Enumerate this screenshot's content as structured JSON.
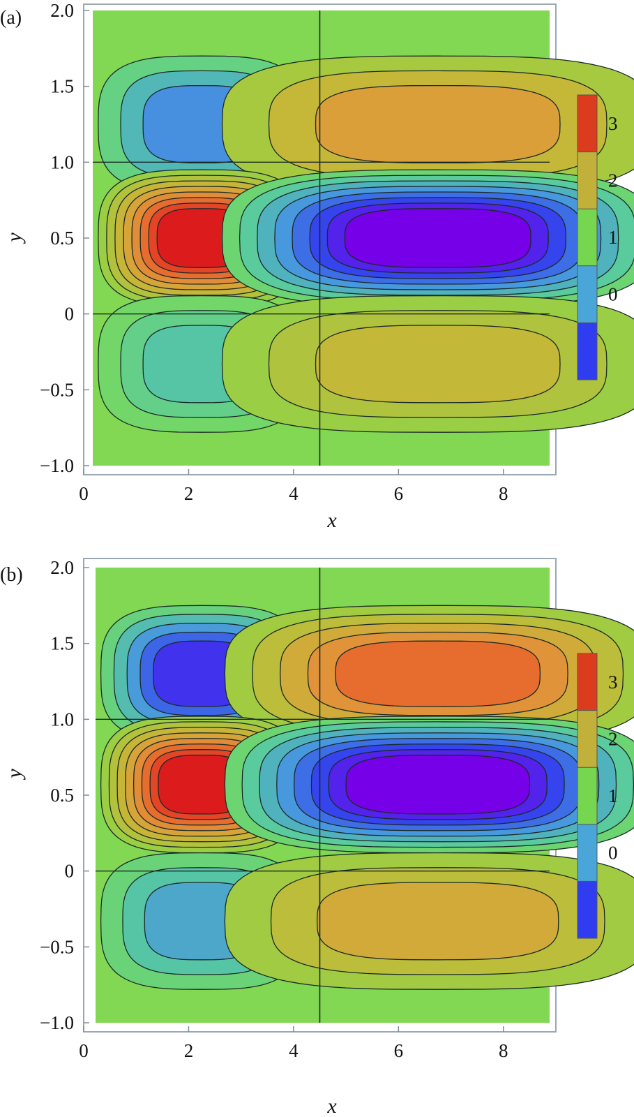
{
  "chart_data": [
    {
      "type": "contour",
      "panel_label": "(a)",
      "xlabel": "x",
      "ylabel": "y",
      "xlim": [
        0,
        9
      ],
      "ylim": [
        -1.0,
        2.0
      ],
      "x_ticks": [
        "0",
        "2",
        "4",
        "6",
        "8"
      ],
      "y_ticks": [
        "−1.0",
        "−0.5",
        "0",
        "0.5",
        "1.0",
        "1.5",
        "2.0"
      ],
      "x_tick_values": [
        0,
        2,
        4,
        6,
        8
      ],
      "y_tick_values": [
        -1.0,
        -0.5,
        0,
        0.5,
        1.0,
        1.5,
        2.0
      ],
      "streamlines": true,
      "cells": [
        {
          "row": "upper",
          "x_center": 2.25,
          "y_center": 1.25,
          "peak_value": 0.4
        },
        {
          "row": "upper",
          "x_center": 6.75,
          "y_center": 1.25,
          "peak_value": 2.8
        },
        {
          "row": "middle",
          "x_center": 2.25,
          "y_center": 0.5,
          "peak_value": 3.9
        },
        {
          "row": "middle",
          "x_center": 6.75,
          "y_center": 0.5,
          "peak_value": -0.6
        },
        {
          "row": "lower",
          "x_center": 2.25,
          "y_center": -0.33,
          "peak_value": 0.9
        },
        {
          "row": "lower",
          "x_center": 6.75,
          "y_center": -0.33,
          "peak_value": 2.35
        }
      ],
      "colorbar": {
        "ticks": [
          "3",
          "2",
          "1",
          "0"
        ],
        "colors": [
          "#dc3c1e",
          "#c1b03a",
          "#77d64f",
          "#4aa6d8",
          "#2f3cf0"
        ]
      }
    },
    {
      "type": "contour",
      "panel_label": "(b)",
      "xlabel": "x",
      "ylabel": "y",
      "xlim": [
        0,
        9
      ],
      "ylim": [
        -1.0,
        2.0
      ],
      "x_ticks": [
        "0",
        "2",
        "4",
        "6",
        "8"
      ],
      "y_ticks": [
        "−1.0",
        "−0.5",
        "0",
        "0.5",
        "1.0",
        "1.5",
        "2.0"
      ],
      "x_tick_values": [
        0,
        2,
        4,
        6,
        8
      ],
      "y_tick_values": [
        -1.0,
        -0.5,
        0,
        0.5,
        1.0,
        1.5,
        2.0
      ],
      "streamlines": true,
      "cells": [
        {
          "row": "upper",
          "x_center": 2.25,
          "y_center": 1.3,
          "peak_value": -0.2
        },
        {
          "row": "upper",
          "x_center": 6.75,
          "y_center": 1.3,
          "peak_value": 3.3
        },
        {
          "row": "middle",
          "x_center": 2.25,
          "y_center": 0.57,
          "peak_value": 3.9
        },
        {
          "row": "middle",
          "x_center": 6.75,
          "y_center": 0.57,
          "peak_value": -0.6
        },
        {
          "row": "lower",
          "x_center": 2.25,
          "y_center": -0.33,
          "peak_value": 0.6
        },
        {
          "row": "lower",
          "x_center": 6.75,
          "y_center": -0.33,
          "peak_value": 2.6
        }
      ],
      "colorbar": {
        "ticks": [
          "3",
          "2",
          "1",
          "0"
        ],
        "colors": [
          "#dc3c1e",
          "#c1b03a",
          "#77d64f",
          "#4aa6d8",
          "#2f3cf0"
        ]
      }
    }
  ]
}
